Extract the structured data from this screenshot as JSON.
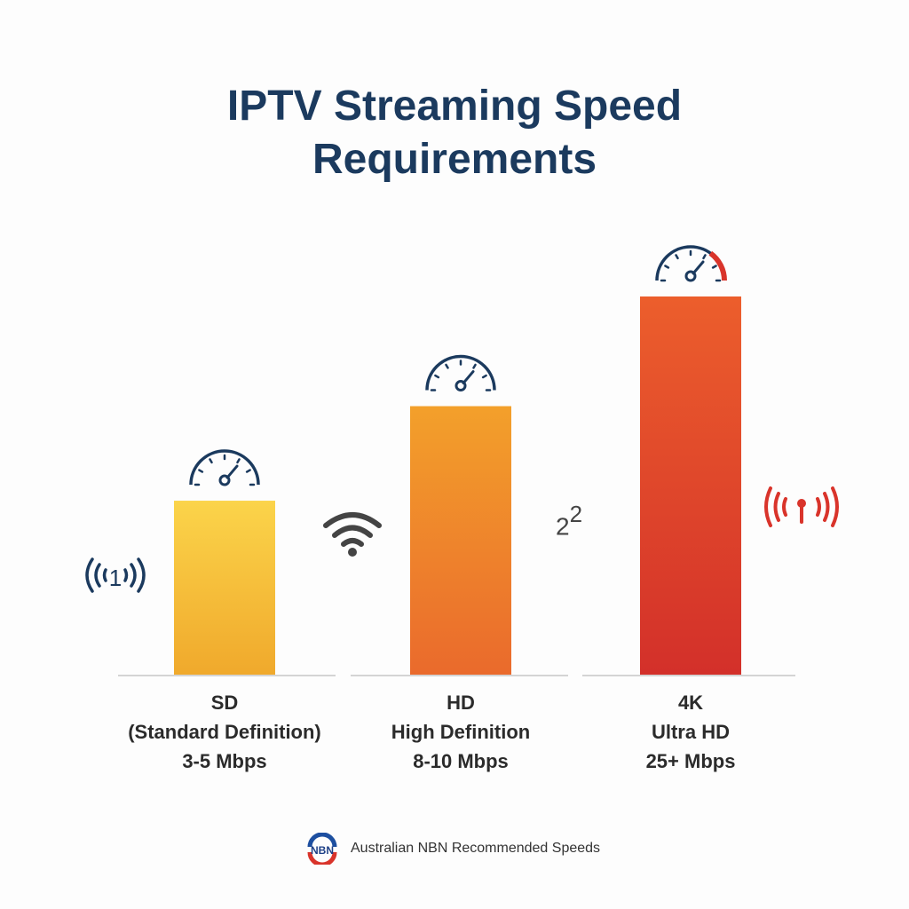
{
  "title": {
    "line1": "IPTV Streaming Speed",
    "line2": "Requirements"
  },
  "chart_data": {
    "type": "bar",
    "title": "IPTV Streaming Speed Requirements",
    "categories": [
      "SD",
      "HD",
      "4K"
    ],
    "category_sublabels": [
      "(Standard Definition)",
      "High Definition",
      "Ultra HD"
    ],
    "speed_labels": [
      "3-5 Mbps",
      "8-10 Mbps",
      "25+ Mbps"
    ],
    "relative_height": [
      0.46,
      0.71,
      1.0
    ],
    "bar_colors": [
      [
        "#fbd44a",
        "#f0a92c"
      ],
      [
        "#f3a02b",
        "#ea6a2c"
      ],
      [
        "#ec5e2c",
        "#d3302a"
      ]
    ],
    "axes_shown": false,
    "grid": false
  },
  "decor": {
    "sd_signal_text": "1",
    "stray_text": "2",
    "stray_superscript": "2"
  },
  "colors": {
    "navy": "#1b3a5e",
    "red": "#d9342b",
    "gray": "#444444"
  },
  "footer": {
    "logo_text": "NBN",
    "text": "Australian NBN Recommended Speeds"
  }
}
